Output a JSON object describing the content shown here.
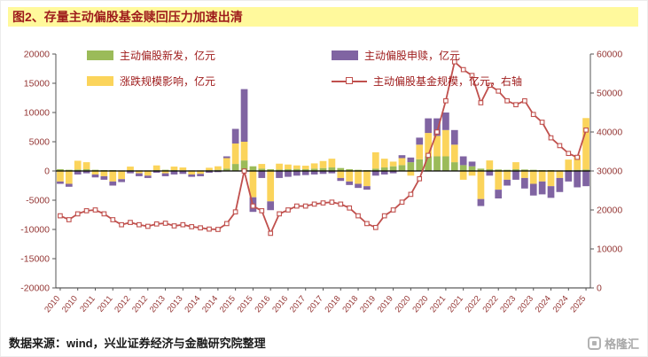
{
  "title": "图2、存量主动偏股基金赎回压力加速出清",
  "footer": {
    "source": "数据来源：wind，兴业证券经济与金融研究院整理"
  },
  "brand": {
    "text": "格隆汇"
  },
  "colors": {
    "title_text": "#9e1b1b",
    "title_highlight": "#FFF99C",
    "axis_text": "#943634",
    "zero_line": "#000000",
    "new_issue_green": "#9BBB59",
    "price_impact_yellow": "#FBD45B",
    "subscription_purple": "#8064A2",
    "scale_line_red": "#C0504D"
  },
  "chart_data": {
    "type": "bar+line",
    "title": "存量主动偏股基金赎回压力加速出清",
    "xlabel": "",
    "ylabel_left": "亿元",
    "ylabel_right": "亿元",
    "grid": false,
    "legend_position": "top",
    "left_axis": {
      "min": -20000,
      "max": 20000,
      "step": 5000
    },
    "right_axis": {
      "min": 0,
      "max": 60000,
      "step": 10000
    },
    "x": [
      "2010Q1",
      "2010Q2",
      "2010Q3",
      "2010Q4",
      "2011Q1",
      "2011Q2",
      "2011Q3",
      "2011Q4",
      "2012Q1",
      "2012Q2",
      "2012Q3",
      "2012Q4",
      "2013Q1",
      "2013Q2",
      "2013Q3",
      "2013Q4",
      "2014Q1",
      "2014Q2",
      "2014Q3",
      "2014Q4",
      "2015Q1",
      "2015Q2",
      "2015Q3",
      "2015Q4",
      "2016Q1",
      "2016Q2",
      "2016Q3",
      "2016Q4",
      "2017Q1",
      "2017Q2",
      "2017Q3",
      "2017Q4",
      "2018Q1",
      "2018Q2",
      "2018Q3",
      "2018Q4",
      "2019Q1",
      "2019Q2",
      "2019Q3",
      "2019Q4",
      "2020Q1",
      "2020Q2",
      "2020Q3",
      "2020Q4",
      "2021Q1",
      "2021Q2",
      "2021Q3",
      "2021Q4",
      "2022Q1",
      "2022Q2",
      "2022Q3",
      "2022Q4",
      "2023Q1",
      "2023Q2",
      "2023Q3",
      "2023Q4",
      "2024Q1",
      "2024Q2",
      "2024Q3",
      "2024Q4",
      "2025Q1"
    ],
    "series": [
      {
        "name": "主动偏股新发，亿元",
        "type": "bar",
        "axis": "left",
        "color": "#9BBB59",
        "values": [
          300,
          200,
          250,
          300,
          200,
          150,
          150,
          100,
          150,
          100,
          100,
          150,
          200,
          150,
          100,
          100,
          100,
          150,
          200,
          400,
          1200,
          1800,
          800,
          400,
          300,
          250,
          300,
          350,
          300,
          400,
          500,
          600,
          500,
          300,
          200,
          150,
          400,
          600,
          800,
          1000,
          1500,
          2000,
          2500,
          2500,
          2500,
          1500,
          1000,
          800,
          400,
          300,
          250,
          200,
          300,
          250,
          200,
          150,
          150,
          100,
          150,
          200,
          250
        ]
      },
      {
        "name": "涨跌规模影响，亿元",
        "type": "bar",
        "axis": "left",
        "color": "#FBD45B",
        "values": [
          -1800,
          -2200,
          1500,
          1200,
          -600,
          -900,
          -1800,
          -1400,
          600,
          -400,
          -800,
          800,
          -400,
          600,
          500,
          -600,
          -500,
          400,
          600,
          1800,
          3500,
          3200,
          -4500,
          800,
          -5200,
          1000,
          800,
          600,
          600,
          900,
          1200,
          1500,
          -1200,
          -1800,
          -2200,
          -2600,
          2800,
          1500,
          800,
          1200,
          -800,
          2500,
          4000,
          3500,
          4500,
          3000,
          -1500,
          -800,
          -4800,
          1500,
          -3200,
          -1500,
          1200,
          -1200,
          -2200,
          -1800,
          -2600,
          -1200,
          1800,
          2500,
          8800
        ]
      },
      {
        "name": "主动偏股申赎，亿元",
        "type": "bar",
        "axis": "left",
        "color": "#8064A2",
        "values": [
          -400,
          -500,
          -600,
          -400,
          -500,
          -600,
          -700,
          -500,
          -400,
          -500,
          -400,
          -300,
          -500,
          -600,
          -500,
          -400,
          -400,
          -300,
          -200,
          300,
          2500,
          9000,
          -2500,
          -1200,
          -1500,
          -1200,
          -1000,
          -800,
          -700,
          -600,
          -500,
          -400,
          -500,
          -600,
          -700,
          -600,
          -800,
          -600,
          -400,
          500,
          800,
          1200,
          2500,
          3000,
          3000,
          2500,
          1500,
          800,
          -1200,
          -800,
          -1500,
          -1000,
          -1500,
          -1800,
          -2000,
          -2200,
          -2000,
          -2400,
          -1800,
          -2800,
          -2600
        ]
      },
      {
        "name": "主动偏股基金规模，亿元，右轴",
        "type": "line",
        "axis": "right",
        "color": "#C0504D",
        "marker": "square",
        "values": [
          18500,
          17500,
          19000,
          19800,
          20000,
          19000,
          17500,
          16200,
          16800,
          16200,
          15800,
          16400,
          16600,
          15900,
          16200,
          15700,
          15400,
          15100,
          15000,
          16500,
          19500,
          30000,
          21000,
          19800,
          14000,
          19000,
          20000,
          21000,
          21000,
          21500,
          21800,
          22000,
          21500,
          20500,
          18500,
          16500,
          15500,
          18500,
          20000,
          22000,
          24000,
          28000,
          34000,
          40000,
          48000,
          58000,
          56000,
          54500,
          47500,
          52000,
          50500,
          48000,
          47000,
          48000,
          44500,
          42500,
          38500,
          36500,
          34500,
          33500,
          40500
        ]
      }
    ]
  }
}
